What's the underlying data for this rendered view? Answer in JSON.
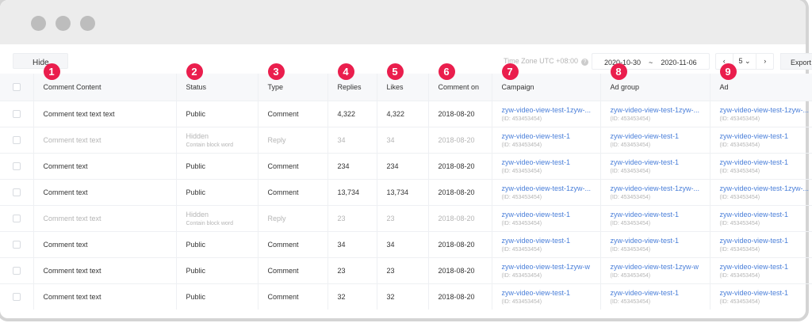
{
  "toolbar": {
    "hide_label": "Hide",
    "timezone": "Time Zone UTC +08:00",
    "help": "?",
    "date_from": "2020-10-30",
    "date_sep": "~",
    "date_to": "2020-11-06",
    "page_prev": "‹",
    "page_size": "5 ⌄",
    "page_next": "›",
    "export_label": "Export"
  },
  "columns": [
    {
      "label": "Comment Content",
      "badge": "1"
    },
    {
      "label": "Status",
      "badge": "2"
    },
    {
      "label": "Type",
      "badge": "3"
    },
    {
      "label": "Replies",
      "badge": "4"
    },
    {
      "label": "Likes",
      "badge": "5"
    },
    {
      "label": "Comment on",
      "badge": "6"
    },
    {
      "label": "Campaign",
      "badge": "7"
    },
    {
      "label": "Ad group",
      "badge": "8"
    },
    {
      "label": "Ad",
      "badge": "9"
    }
  ],
  "rows": [
    {
      "content": "Comment text text text",
      "status": "Public",
      "status_sub": "",
      "type": "Comment",
      "replies": "4,322",
      "likes": "4,322",
      "date": "2018-08-20",
      "campaign": "zyw-video-view-test-1zyw-...",
      "adgroup": "zyw-video-view-test-1zyw-...",
      "ad": "zyw-video-view-test-1zyw-...",
      "id": "(ID: 453453454)"
    },
    {
      "content": "Comment text text",
      "status": "Hidden",
      "status_sub": "Contain block word",
      "type": "Reply",
      "replies": "34",
      "likes": "34",
      "date": "2018-08-20",
      "campaign": "zyw-video-view-test-1",
      "adgroup": "zyw-video-view-test-1",
      "ad": "zyw-video-view-test-1",
      "id": "(ID: 453453454)"
    },
    {
      "content": "Comment text",
      "status": "Public",
      "status_sub": "",
      "type": "Comment",
      "replies": "234",
      "likes": "234",
      "date": "2018-08-20",
      "campaign": "zyw-video-view-test-1",
      "adgroup": "zyw-video-view-test-1",
      "ad": "zyw-video-view-test-1",
      "id": "(ID: 453453454)"
    },
    {
      "content": "Comment text",
      "status": "Public",
      "status_sub": "",
      "type": "Comment",
      "replies": "13,734",
      "likes": "13,734",
      "date": "2018-08-20",
      "campaign": "zyw-video-view-test-1zyw-...",
      "adgroup": "zyw-video-view-test-1zyw-...",
      "ad": "zyw-video-view-test-1zyw-...",
      "id": "(ID: 453453454)"
    },
    {
      "content": "Comment text text",
      "status": "Hidden",
      "status_sub": "Contain block word",
      "type": "Reply",
      "replies": "23",
      "likes": "23",
      "date": "2018-08-20",
      "campaign": "zyw-video-view-test-1",
      "adgroup": "zyw-video-view-test-1",
      "ad": "zyw-video-view-test-1",
      "id": "(ID: 453453454)"
    },
    {
      "content": "Comment text",
      "status": "Public",
      "status_sub": "",
      "type": "Comment",
      "replies": "34",
      "likes": "34",
      "date": "2018-08-20",
      "campaign": "zyw-video-view-test-1",
      "adgroup": "zyw-video-view-test-1",
      "ad": "zyw-video-view-test-1",
      "id": "(ID: 453453454)"
    },
    {
      "content": "Comment text text",
      "status": "Public",
      "status_sub": "",
      "type": "Comment",
      "replies": "23",
      "likes": "23",
      "date": "2018-08-20",
      "campaign": "zyw-video-view-test-1zyw-w",
      "adgroup": "zyw-video-view-test-1zyw-w",
      "ad": "zyw-video-view-test-1",
      "id": "(ID: 453453454)"
    },
    {
      "content": "Comment text text",
      "status": "Public",
      "status_sub": "",
      "type": "Comment",
      "replies": "32",
      "likes": "32",
      "date": "2018-08-20",
      "campaign": "zyw-video-view-test-1",
      "adgroup": "zyw-video-view-test-1",
      "ad": "zyw-video-view-test-1",
      "id": "(ID: 453453454)"
    }
  ],
  "dim_rows": [
    1,
    4
  ]
}
